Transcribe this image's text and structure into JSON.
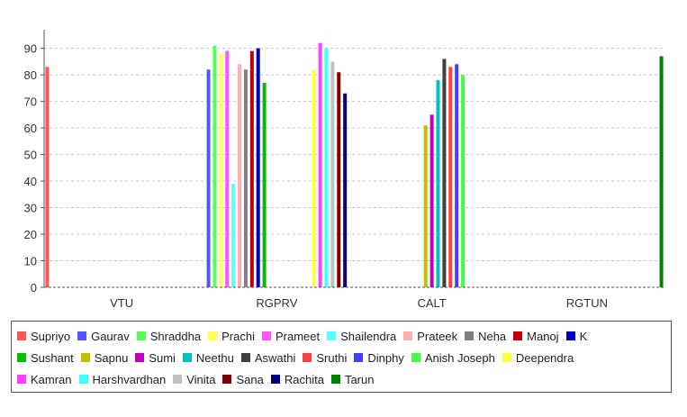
{
  "chart_data": {
    "type": "bar",
    "title": "",
    "xlabel": "",
    "ylabel": "",
    "categories": [
      "VTU",
      "RGPRV",
      "CALT",
      "RGTUN"
    ],
    "ylim": [
      0,
      97
    ],
    "yticks": [
      0,
      10,
      20,
      30,
      40,
      50,
      60,
      70,
      80,
      90
    ],
    "grid": true,
    "legend_placement": "bottom",
    "groups": [
      {
        "category": "VTU",
        "bars": [
          {
            "series": "Supriyo",
            "value": 83
          }
        ]
      },
      {
        "category": "RGPRV",
        "bars": [
          {
            "series": "Gaurav",
            "value": 82
          },
          {
            "series": "Shraddha",
            "value": 91
          },
          {
            "series": "Prachi",
            "value": 88
          },
          {
            "series": "Prameet",
            "value": 89
          },
          {
            "series": "Shailendra",
            "value": 39
          },
          {
            "series": "Prateek",
            "value": 84
          },
          {
            "series": "Neha",
            "value": 82
          },
          {
            "series": "Manoj",
            "value": 89
          },
          {
            "series": "K",
            "value": 90
          },
          {
            "series": "Sushant",
            "value": 77
          },
          {
            "series": "Deependra",
            "value": 82
          },
          {
            "series": "Kamran",
            "value": 92
          },
          {
            "series": "Harshvardhan",
            "value": 90
          },
          {
            "series": "Vinita",
            "value": 85
          },
          {
            "series": "Sana",
            "value": 81
          },
          {
            "series": "Rachita",
            "value": 73
          }
        ]
      },
      {
        "category": "CALT",
        "bars": [
          {
            "series": "Sapnu",
            "value": 61
          },
          {
            "series": "Sumi",
            "value": 65
          },
          {
            "series": "Neethu",
            "value": 78
          },
          {
            "series": "Aswathi",
            "value": 86
          },
          {
            "series": "Sruthi",
            "value": 83
          },
          {
            "series": "Dinphy",
            "value": 84
          },
          {
            "series": "Anish Joseph",
            "value": 80
          }
        ]
      },
      {
        "category": "RGTUN",
        "bars": [
          {
            "series": "Tarun",
            "value": 87
          }
        ]
      }
    ],
    "series": [
      {
        "name": "Supriyo",
        "color": "#ff5555"
      },
      {
        "name": "Gaurav",
        "color": "#5555ff"
      },
      {
        "name": "Shraddha",
        "color": "#55ff55"
      },
      {
        "name": "Prachi",
        "color": "#ffff55"
      },
      {
        "name": "Prameet",
        "color": "#ff55ff"
      },
      {
        "name": "Shailendra",
        "color": "#55ffff"
      },
      {
        "name": "Prateek",
        "color": "#ffafaf"
      },
      {
        "name": "Neha",
        "color": "#808080"
      },
      {
        "name": "Manoj",
        "color": "#c00000"
      },
      {
        "name": "K",
        "color": "#0000c0"
      },
      {
        "name": "Sushant",
        "color": "#00c000"
      },
      {
        "name": "Sapnu",
        "color": "#c0c000"
      },
      {
        "name": "Sumi",
        "color": "#c000c0"
      },
      {
        "name": "Neethu",
        "color": "#00c0c0"
      },
      {
        "name": "Aswathi",
        "color": "#404040"
      },
      {
        "name": "Sruthi",
        "color": "#ff4040"
      },
      {
        "name": "Dinphy",
        "color": "#4040ff"
      },
      {
        "name": "Anish Joseph",
        "color": "#40ff40"
      },
      {
        "name": "Deependra",
        "color": "#ffff40"
      },
      {
        "name": "Kamran",
        "color": "#ff40ff"
      },
      {
        "name": "Harshvardhan",
        "color": "#40ffff"
      },
      {
        "name": "Vinita",
        "color": "#c0c0c0"
      },
      {
        "name": "Sana",
        "color": "#800000"
      },
      {
        "name": "Rachita",
        "color": "#000080"
      },
      {
        "name": "Tarun",
        "color": "#008000"
      }
    ],
    "legend_rows": [
      [
        "Supriyo",
        "Gaurav",
        "Shraddha",
        "Prachi",
        "Prameet",
        "Shailendra",
        "Prateek",
        "Neha",
        "Manoj",
        "K"
      ],
      [
        "Sushant",
        "Sapnu",
        "Sumi",
        "Neethu",
        "Aswathi",
        "Sruthi",
        "Dinphy",
        "Anish Joseph",
        "Deependra"
      ],
      [
        "Kamran",
        "Harshvardhan",
        "Vinita",
        "Sana",
        "Rachita",
        "Tarun"
      ]
    ]
  }
}
